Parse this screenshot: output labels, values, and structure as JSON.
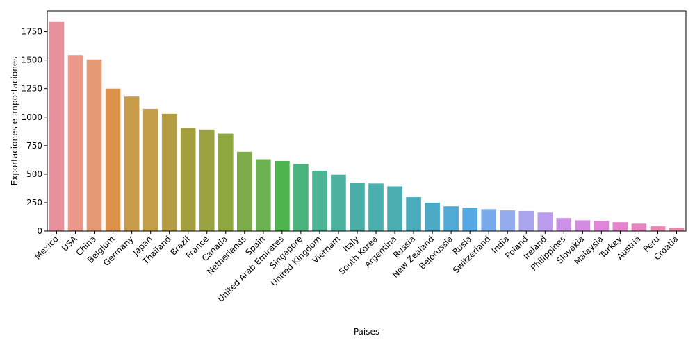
{
  "chart_data": {
    "type": "bar",
    "xlabel": "Paises",
    "ylabel": "Exportaciones e Importaciones",
    "ylim": [
      0,
      1930
    ],
    "yticks": [
      0,
      250,
      500,
      750,
      1000,
      1250,
      1500,
      1750
    ],
    "grid": false,
    "categories": [
      "Mexico",
      "USA",
      "China",
      "Belgium",
      "Germany",
      "Japan",
      "Thailand",
      "Brazil",
      "France",
      "Canada",
      "Netherlands",
      "Spain",
      "United Arab Emirates",
      "Singapore",
      "United Kingdom",
      "Vietnam",
      "Italy",
      "South Korea",
      "Argentina",
      "Russia",
      "New Zealand",
      "Belorussia",
      "Rusia",
      "Switzerland",
      "India",
      "Poland",
      "Ireland",
      "Philippines",
      "Slovakia",
      "Malaysia",
      "Turkey",
      "Austria",
      "Peru",
      "Croatia"
    ],
    "values": [
      1840,
      1545,
      1505,
      1250,
      1180,
      1072,
      1030,
      905,
      890,
      855,
      695,
      630,
      615,
      588,
      530,
      495,
      425,
      418,
      393,
      298,
      250,
      218,
      205,
      193,
      182,
      177,
      163,
      115,
      95,
      90,
      78,
      65,
      42,
      30
    ],
    "colors": [
      "#e9909d",
      "#e9988a",
      "#e59a76",
      "#db914a",
      "#c99c4b",
      "#c39e48",
      "#b49c43",
      "#a39f3f",
      "#9aa33f",
      "#8ea73f",
      "#7eac49",
      "#6cb152",
      "#4db44e",
      "#4ab47e",
      "#4cb393",
      "#4ab29f",
      "#4aada6",
      "#4aafac",
      "#4aaeb1",
      "#4bacbc",
      "#4ca9c5",
      "#51aad5",
      "#55a8e3",
      "#78aaec",
      "#94acee",
      "#aba4ee",
      "#bb9ded",
      "#cc92e8",
      "#d68be3",
      "#e384dc",
      "#e584cd",
      "#e685bf",
      "#e787b2",
      "#e78aa6"
    ]
  }
}
